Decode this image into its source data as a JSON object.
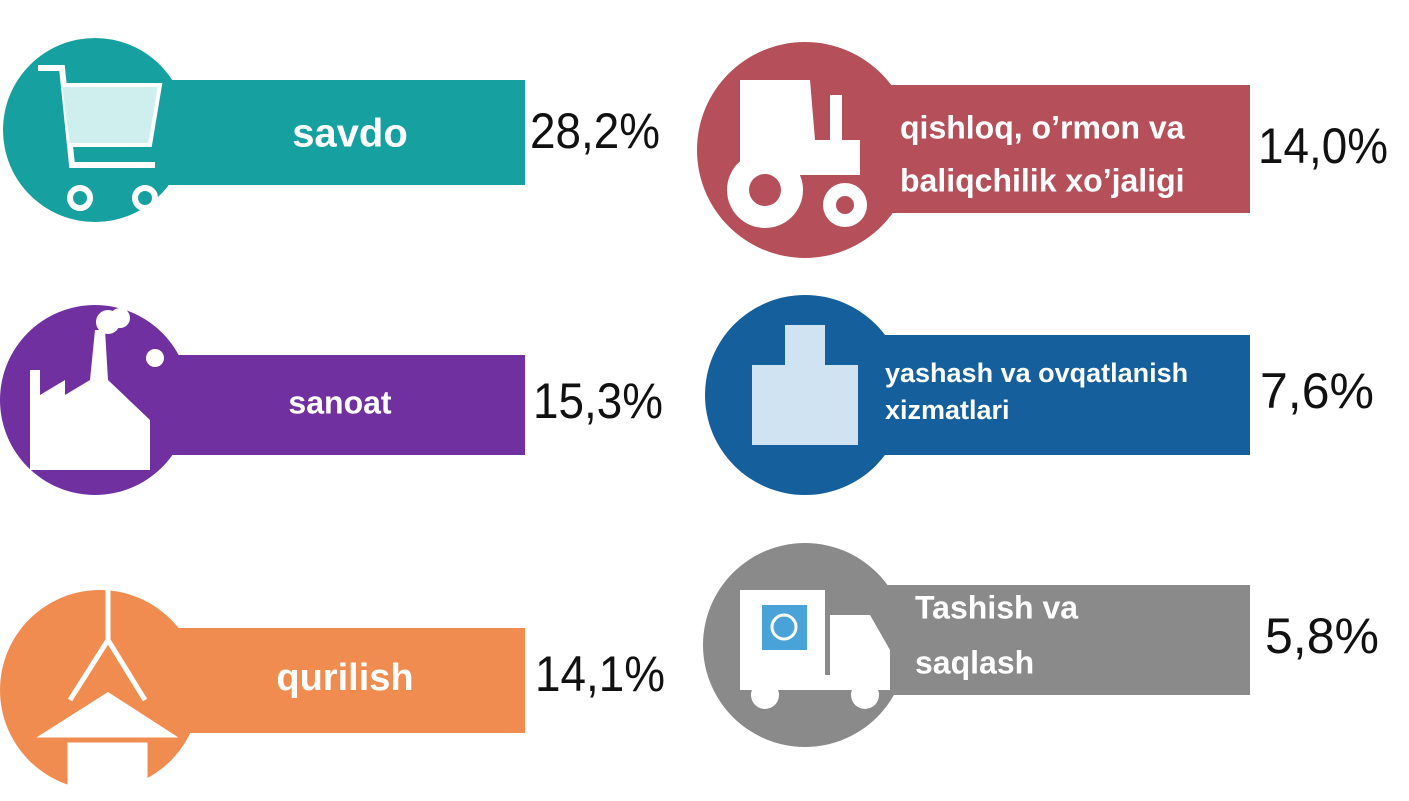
{
  "items": [
    {
      "label": [
        "savdo"
      ],
      "value": "28,2%"
    },
    {
      "label": [
        "sanoat"
      ],
      "value": "15,3%"
    },
    {
      "label": [
        "qurilish"
      ],
      "value": "14,1%"
    },
    {
      "label": [
        "qishloq, o’rmon va",
        "baliqchilik xo’jaligi"
      ],
      "value": "14,0%"
    },
    {
      "label": [
        "yashash va ovqatlanish",
        "xizmatlari"
      ],
      "value": "7,6%"
    },
    {
      "label": [
        "Tashish va",
        "saqlash"
      ],
      "value": "5,8%"
    }
  ]
}
